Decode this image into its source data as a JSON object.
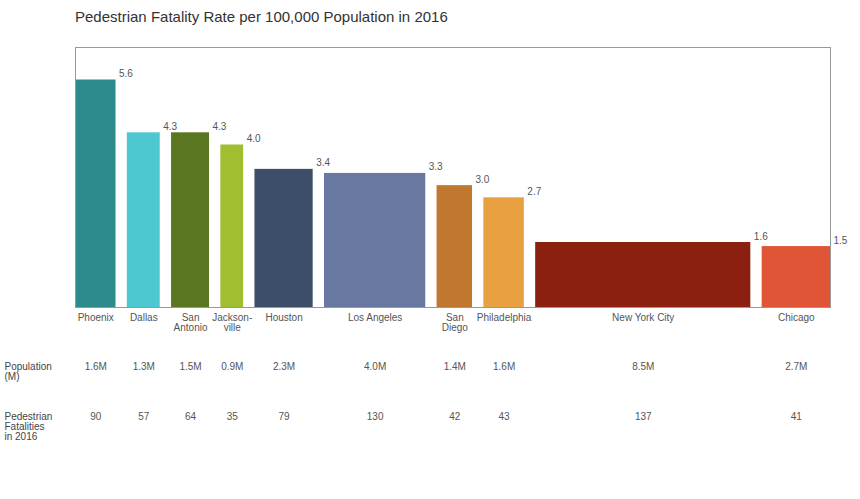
{
  "chart_data": {
    "type": "bar",
    "title": "Pedestrian Fatality Rate per 100,000 Population in 2016",
    "categories": [
      "Phoenix",
      "Dallas",
      "San\nAntonio",
      "Jackson-\nville",
      "Houston",
      "Los Angeles",
      "San\nDiego",
      "Philadelphia",
      "New York City",
      "Chicago"
    ],
    "values": [
      5.6,
      4.3,
      4.3,
      4.0,
      3.4,
      3.3,
      3.0,
      2.7,
      1.6,
      1.5
    ],
    "value_labels": [
      "5.6",
      "4.3",
      "4.3",
      "4.0",
      "3.4",
      "3.3",
      "3.0",
      "2.7",
      "1.6",
      "1.5"
    ],
    "colors": [
      "#2e8b8c",
      "#4dc8d0",
      "#5a7620",
      "#a0be30",
      "#3c4e68",
      "#6878a0",
      "#c07830",
      "#e8a040",
      "#8c2010",
      "#e05535"
    ],
    "populations": [
      1.6,
      1.3,
      1.5,
      0.9,
      2.3,
      4.0,
      1.4,
      1.6,
      8.5,
      2.7
    ],
    "population_labels": [
      "1.6M",
      "1.3M",
      "1.5M",
      "0.9M",
      "2.3M",
      "4.0M",
      "1.4M",
      "1.6M",
      "8.5M",
      "2.7M"
    ],
    "population_row_label": "Population\n(M)",
    "fatalities": [
      90,
      57,
      64,
      35,
      79,
      130,
      42,
      43,
      137,
      41
    ],
    "fatalities_row_label": "Pedestrian\nFatalities\nin 2016",
    "ylim": [
      0,
      6.4
    ],
    "yticks": [],
    "tick_labels": false,
    "data_labels": true,
    "grid": false
  }
}
